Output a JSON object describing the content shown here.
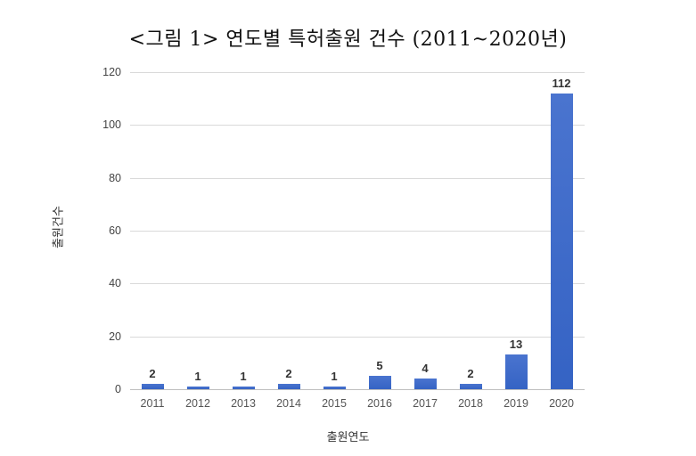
{
  "title": "<그림 1> 연도별 특허출원 건수 (2011~2020년)",
  "chart_data": {
    "type": "bar",
    "title": "<그림 1> 연도별 특허출원 건수 (2011~2020년)",
    "xlabel": "출원연도",
    "ylabel": "출원건수",
    "categories": [
      "2011",
      "2012",
      "2013",
      "2014",
      "2015",
      "2016",
      "2017",
      "2018",
      "2019",
      "2020"
    ],
    "values": [
      2,
      1,
      1,
      2,
      1,
      5,
      4,
      2,
      13,
      112
    ],
    "ylim": [
      0,
      120
    ],
    "yticks": [
      0,
      20,
      40,
      60,
      80,
      100,
      120
    ],
    "grid": true,
    "legend": null,
    "data_labels": true,
    "bar_color": "#3d69c9"
  }
}
